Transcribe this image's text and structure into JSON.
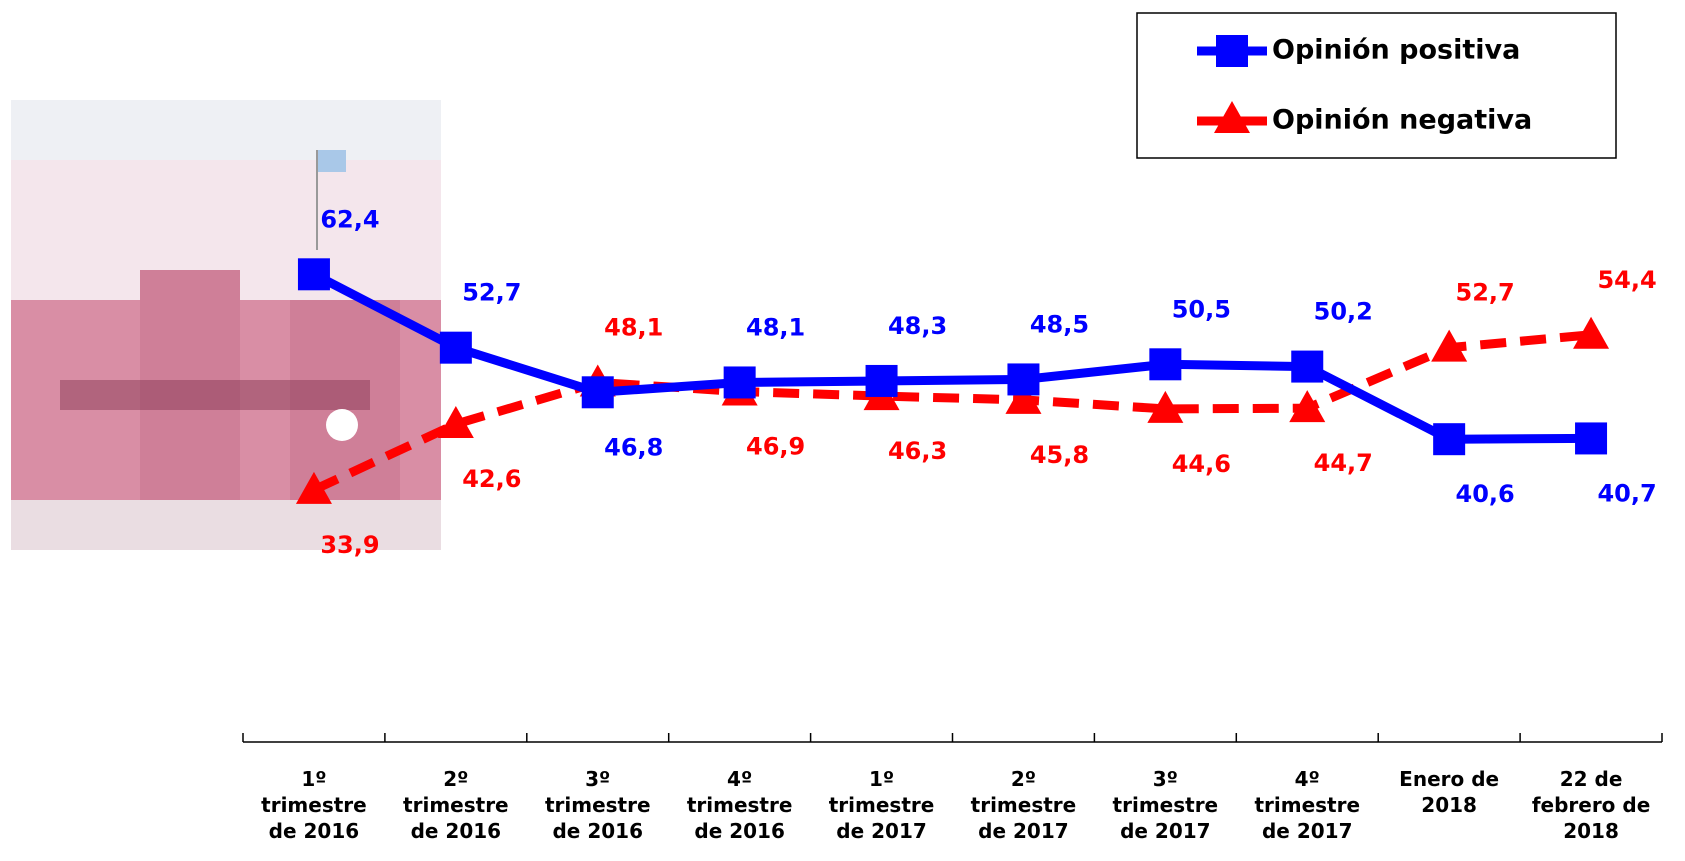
{
  "chart_data": {
    "type": "line",
    "categories": [
      "1º trimestre de 2016",
      "2º trimestre de 2016",
      "3º trimestre de 2016",
      "4º trimestre de 2016",
      "1º trimestre de 2017",
      "2º trimestre de 2017",
      "3º trimestre de 2017",
      "4º trimestre de 2017",
      "Enero de 2018",
      "22 de febrero de 2018"
    ],
    "series": [
      {
        "name": "Opinión positiva",
        "color": "#0000ff",
        "marker": "square",
        "dash": false,
        "values": [
          62.4,
          52.7,
          46.8,
          48.1,
          48.3,
          48.5,
          50.5,
          50.2,
          40.6,
          40.7
        ],
        "value_labels": [
          "62,4",
          "52,7",
          "46,8",
          "48,1",
          "48,3",
          "48,5",
          "50,5",
          "50,2",
          "40,6",
          "40,7"
        ]
      },
      {
        "name": "Opinión negativa",
        "color": "#ff0000",
        "marker": "triangle",
        "dash": true,
        "values": [
          33.9,
          42.6,
          48.1,
          46.9,
          46.3,
          45.8,
          44.6,
          44.7,
          52.7,
          54.4
        ],
        "value_labels": [
          "33,9",
          "42,6",
          "48,1",
          "46,9",
          "46,3",
          "45,8",
          "44,6",
          "44,7",
          "52,7",
          "54,4"
        ]
      }
    ],
    "ylim": [
      20,
      75
    ],
    "legend": "upper right"
  }
}
